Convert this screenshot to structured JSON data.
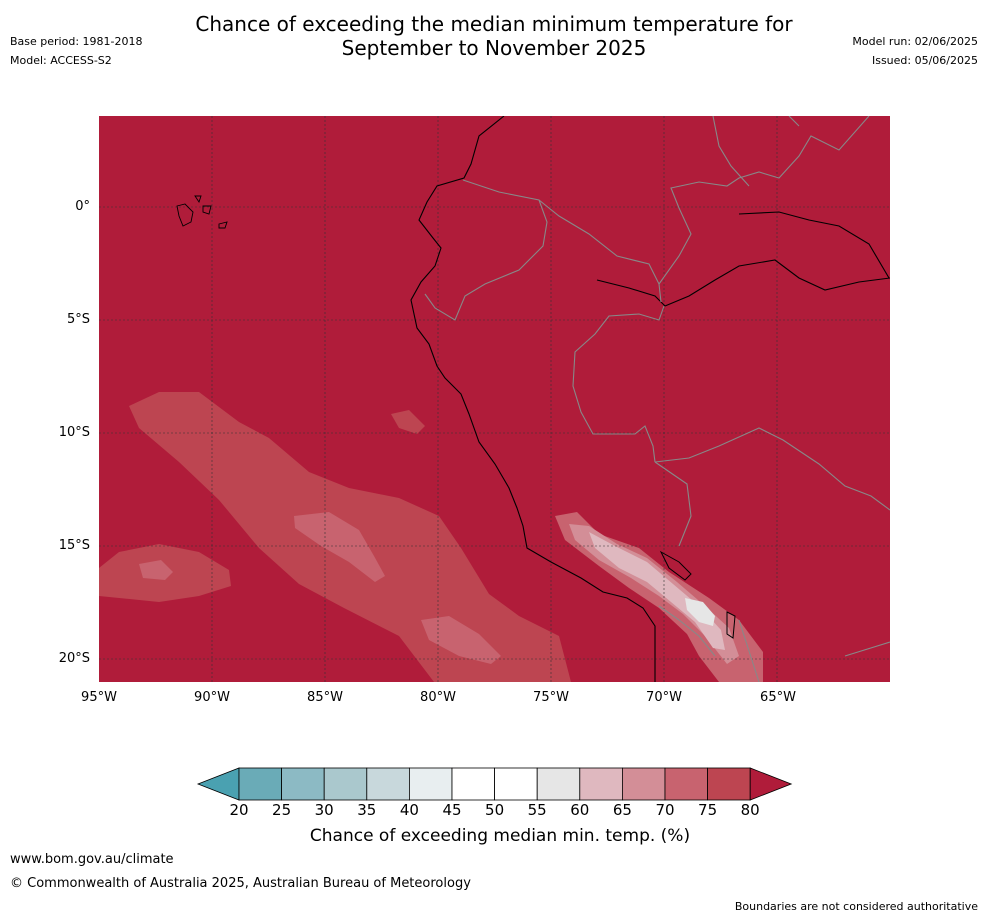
{
  "title_line1": "Chance of exceeding the median minimum temperature for",
  "title_line2": "September to November 2025",
  "base_period": "Base period: 1981-2018",
  "model": "Model: ACCESS-S2",
  "model_run": "Model run: 02/06/2025",
  "issued": "Issued: 05/06/2025",
  "lat_labels": [
    "0°",
    "5°S",
    "10°S",
    "15°S",
    "20°S"
  ],
  "lon_labels": [
    "95°W",
    "90°W",
    "85°W",
    "80°W",
    "75°W",
    "70°W",
    "65°W"
  ],
  "colorbar": {
    "ticks": [
      "20",
      "25",
      "30",
      "35",
      "40",
      "45",
      "50",
      "55",
      "60",
      "65",
      "70",
      "75",
      "80"
    ],
    "label": "Chance of exceeding median min. temp. (%)",
    "colors": [
      "#6aabb7",
      "#8cbac4",
      "#aac8cd",
      "#c8d8dc",
      "#e8eef0",
      "#ffffff",
      "#ffffff",
      "#e6e6e6",
      "#dfb8bf",
      "#d38e97",
      "#c8636f",
      "#bd4551"
    ],
    "under_color": "#4aa1b1",
    "over_color": "#b01c3a"
  },
  "background_color": "#b01c3a",
  "website": "www.bom.gov.au/climate",
  "copyright": "© Commonwealth of Australia 2025, Australian Bureau of Meteorology",
  "disclaimer": "Boundaries are not considered authoritative"
}
